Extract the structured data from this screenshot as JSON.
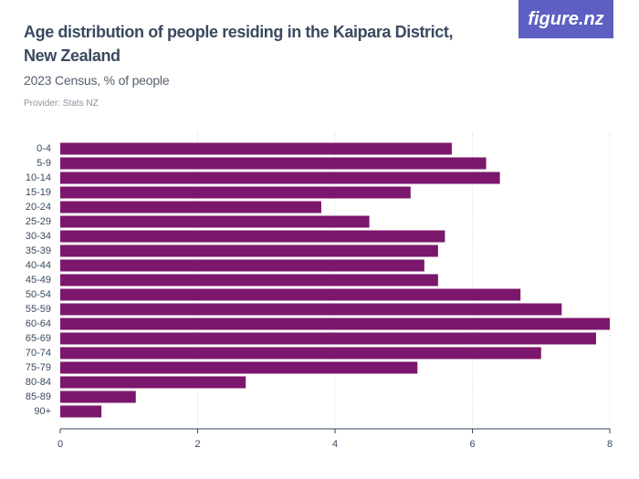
{
  "chart_data": {
    "type": "bar",
    "orientation": "horizontal",
    "title": "Age distribution of people residing in the Kaipara District, New Zealand",
    "subtitle": "2023 Census, % of people",
    "provider": "Provider: Stats NZ",
    "logo": "figure.nz",
    "categories": [
      "0-4",
      "5-9",
      "10-14",
      "15-19",
      "20-24",
      "25-29",
      "30-34",
      "35-39",
      "40-44",
      "45-49",
      "50-54",
      "55-59",
      "60-64",
      "65-69",
      "70-74",
      "75-79",
      "80-84",
      "85-89",
      "90+"
    ],
    "values": [
      5.7,
      6.2,
      6.4,
      5.1,
      3.8,
      4.5,
      5.6,
      5.5,
      5.3,
      5.5,
      6.7,
      7.3,
      8.0,
      7.8,
      7.0,
      5.2,
      2.7,
      1.1,
      0.6
    ],
    "color": "#7b176c",
    "xlim": [
      0,
      8
    ],
    "xticks": [
      0,
      2,
      4,
      6,
      8
    ],
    "grid": true
  }
}
